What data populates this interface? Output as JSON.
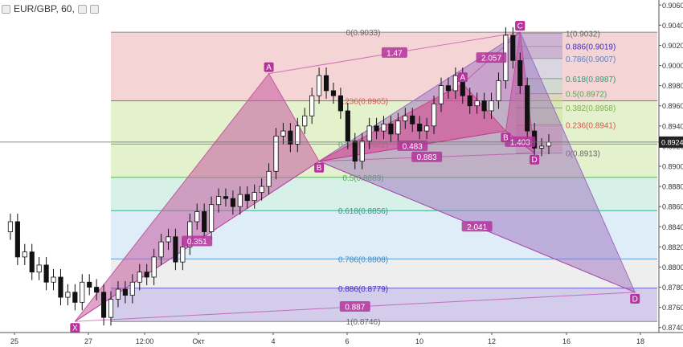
{
  "symbol_title": "EUR/GBP, 60,",
  "colors": {
    "accent": "#b5349b",
    "up": "#111111",
    "fib_red": "#e8a0a4",
    "fib_green": "#c4df90",
    "fib_teal": "#a6e0cc",
    "fib_blue": "#b8d7ef",
    "fib_gray": "#d9d9d9",
    "fib_purple": "#9d8fd1"
  },
  "chart_data": {
    "type": "candlestick",
    "instrument": "EUR/GBP",
    "timeframe": "60",
    "ylim": [
      0.8735,
      0.9065
    ],
    "yticks": [
      0.874,
      0.876,
      0.878,
      0.88,
      0.882,
      0.884,
      0.886,
      0.888,
      0.89,
      0.892,
      0.894,
      0.896,
      0.898,
      0.9,
      0.902,
      0.904,
      0.906
    ],
    "ytick_labels": [
      "0.8740",
      "0.8760",
      "0.8780",
      "0.8800",
      "0.8820",
      "0.8840",
      "0.8860",
      "0.8880",
      "0.8900",
      "0.8920",
      "0.8940",
      "0.8960",
      "0.8980",
      "0.9000",
      "0.9020",
      "0.9040",
      "0.9060"
    ],
    "current_price": "0.8924",
    "xticks": [
      "25",
      "27",
      "12:00",
      "Окт",
      "4",
      "6",
      "10",
      "12",
      "16",
      "18"
    ],
    "price_path": [
      0.8835,
      0.8845,
      0.881,
      0.8815,
      0.8795,
      0.8802,
      0.8785,
      0.879,
      0.877,
      0.8775,
      0.8765,
      0.8785,
      0.878,
      0.8775,
      0.875,
      0.8768,
      0.8778,
      0.8772,
      0.8785,
      0.8795,
      0.879,
      0.881,
      0.8825,
      0.883,
      0.8805,
      0.882,
      0.8845,
      0.8855,
      0.8835,
      0.8862,
      0.887,
      0.8868,
      0.886,
      0.8872,
      0.8866,
      0.8874,
      0.888,
      0.8895,
      0.893,
      0.8935,
      0.8922,
      0.894,
      0.895,
      0.897,
      0.899,
      0.8975,
      0.897,
      0.8955,
      0.8925,
      0.8905,
      0.8925,
      0.894,
      0.8935,
      0.8942,
      0.8932,
      0.8945,
      0.895,
      0.8942,
      0.8935,
      0.894,
      0.8962,
      0.898,
      0.8975,
      0.899,
      0.897,
      0.896,
      0.8965,
      0.8955,
      0.8965,
      0.8985,
      0.903,
      0.9005,
      0.898,
      0.8935,
      0.8918,
      0.892,
      0.8924
    ],
    "fib_retracement_left": [
      {
        "label": "0(0.9033)",
        "price": 0.9033
      },
      {
        "label": "0.236(0.8965)",
        "price": 0.8965
      },
      {
        "label": "0.382(0.8922)",
        "price": 0.8922
      },
      {
        "label": "0.5(0.8889)",
        "price": 0.8889
      },
      {
        "label": "0.618(0.8856)",
        "price": 0.8856
      },
      {
        "label": "0.786(0.8808)",
        "price": 0.8808
      },
      {
        "label": "0.886(0.8779)",
        "price": 0.8779
      },
      {
        "label": "1(0.8746)",
        "price": 0.8746
      }
    ],
    "fib_retracement_right": [
      {
        "label": "1(0.9032)",
        "price": 0.9032
      },
      {
        "label": "0.886(0.9019)",
        "price": 0.9019
      },
      {
        "label": "0.786(0.9007)",
        "price": 0.9007
      },
      {
        "label": "0.618(0.8987)",
        "price": 0.8987
      },
      {
        "label": "0.5(0.8972)",
        "price": 0.8972
      },
      {
        "label": "0.382(0.8958)",
        "price": 0.8958
      },
      {
        "label": "0.236(0.8941)",
        "price": 0.8941
      },
      {
        "label": "0(0.8913)",
        "price": 0.8913
      }
    ],
    "pattern_big": {
      "points": [
        {
          "name": "X",
          "t": 10,
          "price": 0.8746
        },
        {
          "name": "A",
          "t": 37,
          "price": 0.8992
        },
        {
          "name": "B",
          "t": 44,
          "price": 0.8905
        },
        {
          "name": "C",
          "t": 72,
          "price": 0.9033
        },
        {
          "name": "D",
          "t": 88,
          "price": 0.8775
        }
      ],
      "ratios": [
        "0.351",
        "1.47",
        "2.041",
        "0.887"
      ]
    },
    "pattern_small": {
      "points": [
        {
          "name": "X",
          "t": 44,
          "price": 0.8905
        },
        {
          "name": "A",
          "t": 64,
          "price": 0.8982
        },
        {
          "name": "B",
          "t": 70,
          "price": 0.8935
        },
        {
          "name": "C",
          "t": 72,
          "price": 0.9033
        },
        {
          "name": "D",
          "t": 74,
          "price": 0.8913
        }
      ],
      "ratios": [
        "0.483",
        "2.057",
        "1.403",
        "0.883"
      ]
    }
  }
}
